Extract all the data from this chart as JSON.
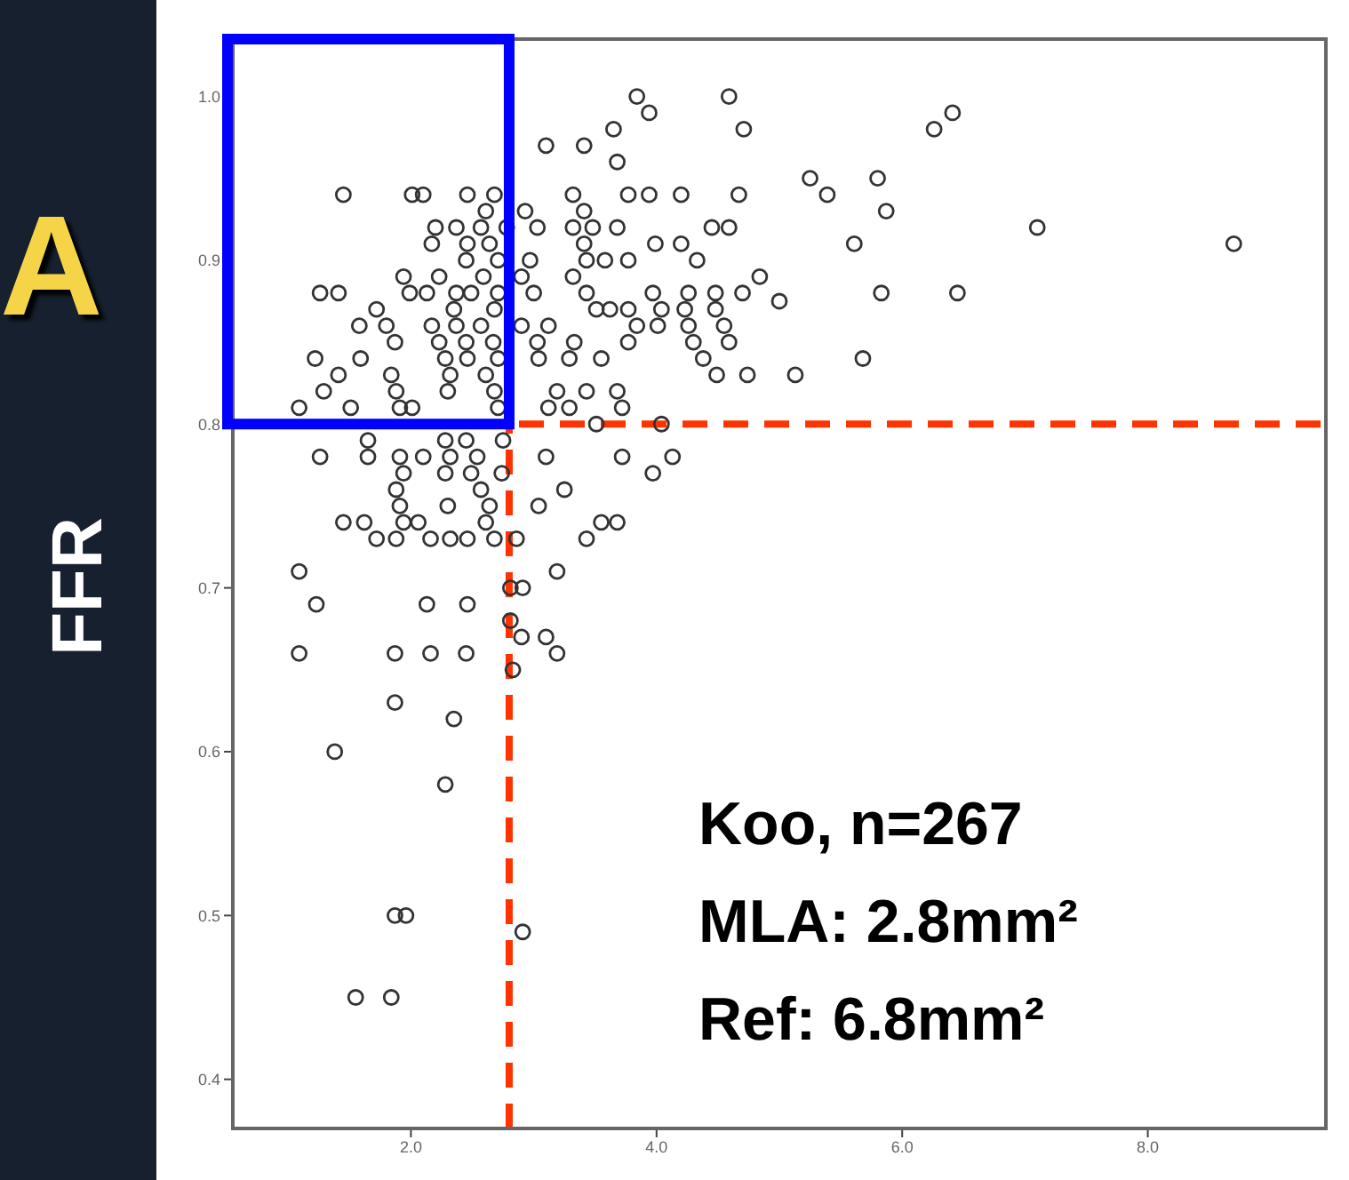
{
  "chart_data": {
    "type": "scatter",
    "ylabel": "FFR",
    "marker": "circle",
    "xlim": [
      0.55,
      9.45
    ],
    "ylim": [
      0.37,
      1.035
    ],
    "xticks": [
      {
        "value": 2,
        "label": "2.0"
      },
      {
        "value": 4,
        "label": "4.0"
      },
      {
        "value": 6,
        "label": "6.0"
      },
      {
        "value": 8,
        "label": "8.0"
      }
    ],
    "yticks": [
      {
        "value": 0.4,
        "label": "0.4"
      },
      {
        "value": 0.5,
        "label": "0.5"
      },
      {
        "value": 0.6,
        "label": "0.6"
      },
      {
        "value": 0.7,
        "label": "0.7"
      },
      {
        "value": 0.8,
        "label": "0.8"
      },
      {
        "value": 0.9,
        "label": "0.9"
      },
      {
        "value": 1,
        "label": "1.0"
      }
    ],
    "ref_lines": [
      {
        "axis": "x",
        "value": 2.8,
        "color": "#ff3300",
        "line_style": "dashed"
      },
      {
        "axis": "y",
        "value": 0.8,
        "color": "#ff3300",
        "line_style": "dashed"
      }
    ],
    "annotations": [
      "A",
      "Koo, n=267",
      "MLA: 2.8mm²",
      "Ref: 6.8mm²"
    ],
    "x": [
      3.84,
      4.59,
      3.94,
      4.71,
      3.65,
      3.1,
      3.41,
      3.68,
      1.45,
      2.01,
      2.1,
      2.46,
      2.68,
      3.32,
      3.77,
      3.94,
      4.2,
      4.67,
      2.61,
      2.93,
      3.41,
      2.2,
      2.37,
      2.57,
      2.78,
      3.03,
      3.32,
      3.48,
      3.68,
      4.45,
      4.59,
      2.17,
      2.46,
      2.64,
      3.41,
      3.99,
      4.2,
      2.45,
      2.71,
      2.97,
      3.43,
      3.58,
      3.77,
      4.33,
      1.94,
      2.23,
      2.59,
      2.9,
      3.32,
      4.84,
      1.26,
      1.41,
      1.99,
      2.13,
      2.37,
      2.49,
      2.71,
      3.0,
      3.43,
      3.97,
      4.26,
      4.48,
      4.7,
      1.72,
      2.35,
      2.68,
      3.51,
      3.62,
      3.77,
      4.04,
      4.23,
      4.48,
      1.58,
      1.8,
      2.17,
      2.37,
      2.57,
      2.9,
      3.12,
      3.84,
      4.01,
      4.26,
      4.55,
      1.87,
      2.23,
      2.45,
      2.67,
      3.03,
      3.33,
      3.77,
      4.3,
      4.59,
      1.22,
      1.59,
      2.28,
      2.46,
      2.71,
      3.04,
      3.29,
      3.55,
      4.38,
      1.41,
      1.84,
      2.32,
      2.61,
      4.49,
      4.74,
      1.29,
      1.88,
      2.3,
      2.68,
      3.19,
      3.43,
      3.68,
      1.09,
      1.51,
      1.91,
      2.01,
      2.71,
      3.12,
      3.29,
      3.72,
      3.51,
      4.04,
      1.65,
      2.28,
      2.45,
      2.75,
      1.26,
      1.65,
      1.91,
      2.1,
      2.32,
      2.54,
      3.1,
      3.72,
      4.13,
      1.94,
      2.28,
      2.49,
      2.74,
      3.97,
      1.88,
      2.57,
      3.25,
      1.91,
      2.3,
      2.64,
      3.04,
      1.45,
      1.62,
      1.94,
      2.06,
      2.61,
      3.55,
      3.68,
      1.72,
      1.88,
      2.16,
      2.32,
      2.46,
      2.68,
      2.86,
      3.43,
      1.09,
      3.19,
      1.23,
      2.13,
      2.46,
      2.81,
      2.91,
      2.81,
      2.9,
      3.1,
      3.19,
      1.09,
      1.87,
      2.16,
      2.45,
      2.83,
      1.87,
      2.35,
      1.38,
      2.28,
      1.87,
      1.96,
      2.91,
      1.55,
      1.84,
      6.26,
      6.41,
      5.25,
      5.39,
      5.8,
      5.87,
      5.61,
      7.1,
      8.7,
      5.0,
      5.83,
      6.45,
      5.68,
      5.13
    ],
    "values": [
      1.0,
      1.0,
      0.99,
      0.98,
      0.98,
      0.97,
      0.97,
      0.96,
      0.94,
      0.94,
      0.94,
      0.94,
      0.94,
      0.94,
      0.94,
      0.94,
      0.94,
      0.94,
      0.93,
      0.93,
      0.93,
      0.92,
      0.92,
      0.92,
      0.92,
      0.92,
      0.92,
      0.92,
      0.92,
      0.92,
      0.92,
      0.91,
      0.91,
      0.91,
      0.91,
      0.91,
      0.91,
      0.9,
      0.9,
      0.9,
      0.9,
      0.9,
      0.9,
      0.9,
      0.89,
      0.89,
      0.89,
      0.89,
      0.89,
      0.89,
      0.88,
      0.88,
      0.88,
      0.88,
      0.88,
      0.88,
      0.88,
      0.88,
      0.88,
      0.88,
      0.88,
      0.88,
      0.88,
      0.87,
      0.87,
      0.87,
      0.87,
      0.87,
      0.87,
      0.87,
      0.87,
      0.87,
      0.86,
      0.86,
      0.86,
      0.86,
      0.86,
      0.86,
      0.86,
      0.86,
      0.86,
      0.86,
      0.86,
      0.85,
      0.85,
      0.85,
      0.85,
      0.85,
      0.85,
      0.85,
      0.85,
      0.85,
      0.84,
      0.84,
      0.84,
      0.84,
      0.84,
      0.84,
      0.84,
      0.84,
      0.84,
      0.83,
      0.83,
      0.83,
      0.83,
      0.83,
      0.83,
      0.82,
      0.82,
      0.82,
      0.82,
      0.82,
      0.82,
      0.82,
      0.81,
      0.81,
      0.81,
      0.81,
      0.81,
      0.81,
      0.81,
      0.81,
      0.8,
      0.8,
      0.79,
      0.79,
      0.79,
      0.79,
      0.78,
      0.78,
      0.78,
      0.78,
      0.78,
      0.78,
      0.78,
      0.78,
      0.78,
      0.77,
      0.77,
      0.77,
      0.77,
      0.77,
      0.76,
      0.76,
      0.76,
      0.75,
      0.75,
      0.75,
      0.75,
      0.74,
      0.74,
      0.74,
      0.74,
      0.74,
      0.74,
      0.74,
      0.73,
      0.73,
      0.73,
      0.73,
      0.73,
      0.73,
      0.73,
      0.73,
      0.71,
      0.71,
      0.69,
      0.69,
      0.69,
      0.7,
      0.7,
      0.68,
      0.67,
      0.67,
      0.66,
      0.66,
      0.66,
      0.66,
      0.66,
      0.65,
      0.63,
      0.62,
      0.6,
      0.58,
      0.5,
      0.5,
      0.49,
      0.45,
      0.45,
      0.98,
      0.99,
      0.95,
      0.94,
      0.95,
      0.93,
      0.91,
      0.92,
      0.91,
      0.875,
      0.88,
      0.88,
      0.84,
      0.83
    ],
    "color": "#333333"
  }
}
